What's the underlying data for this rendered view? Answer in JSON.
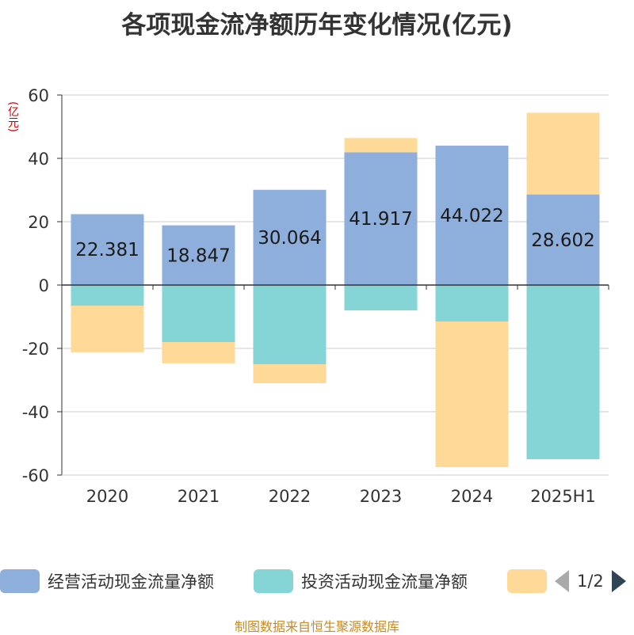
{
  "title": "各项现金流净额历年变化情况(亿元)",
  "unit_label": "(亿元)",
  "source": "制图数据来自恒生聚源数据库",
  "pager": {
    "text": "1/2"
  },
  "colors": {
    "operating": "#8eaedb",
    "investing": "#85d5d6",
    "financing": "#ffd998",
    "grid": "#cccccc",
    "axis": "#333333"
  },
  "chart_data": {
    "type": "bar",
    "stacked": true,
    "categories": [
      "2020",
      "2021",
      "2022",
      "2023",
      "2024",
      "2025H1"
    ],
    "ylim": [
      -60,
      60
    ],
    "yticks": [
      -60,
      -40,
      -20,
      0,
      20,
      40,
      60
    ],
    "grid": true,
    "legend_position": "bottom",
    "series": [
      {
        "name": "经营活动现金流量净额",
        "values": [
          22.381,
          18.847,
          30.064,
          41.917,
          44.022,
          28.602
        ],
        "labels": [
          "22.381",
          "18.847",
          "30.064",
          "41.917",
          "44.022",
          "28.602"
        ]
      },
      {
        "name": "投资活动现金流量净额",
        "values": [
          -6.5,
          -18.0,
          -25.0,
          -8.0,
          -11.5,
          -55.0
        ]
      },
      {
        "name": "",
        "values": [
          -14.7,
          -6.7,
          -6.0,
          4.5,
          -46.0,
          25.8
        ]
      }
    ]
  }
}
